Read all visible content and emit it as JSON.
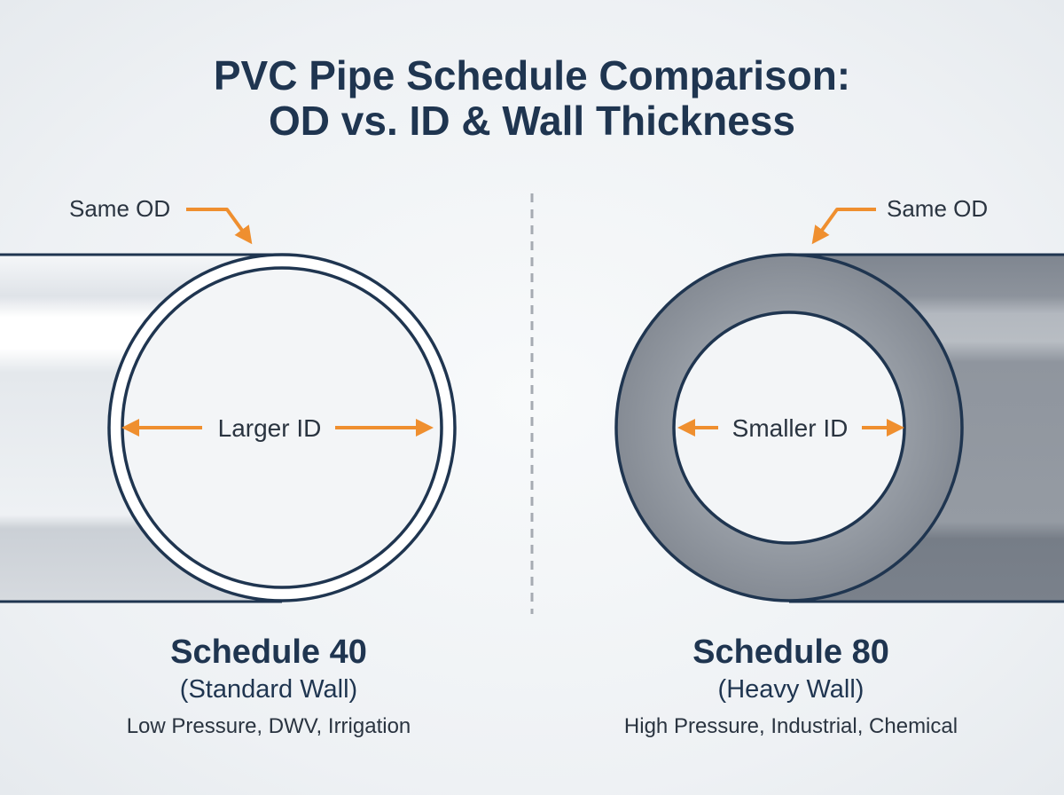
{
  "title": {
    "line1": "PVC Pipe Schedule Comparison:",
    "line2": "OD vs. ID & Wall Thickness"
  },
  "colors": {
    "title": "#1f3550",
    "outline": "#1f3550",
    "arrow": "#ef8f2f",
    "heavy_wall": "#8a9099",
    "divider": "#a6abb2"
  },
  "schedule_40": {
    "callout": "Same OD",
    "id_label": "Larger ID",
    "name": "Schedule 40",
    "wall": "(Standard Wall)",
    "uses": "Low Pressure, DWV, Irrigation"
  },
  "schedule_80": {
    "callout": "Same OD",
    "id_label": "Smaller ID",
    "name": "Schedule 80",
    "wall": "(Heavy Wall)",
    "uses": "High Pressure, Industrial, Chemical"
  }
}
